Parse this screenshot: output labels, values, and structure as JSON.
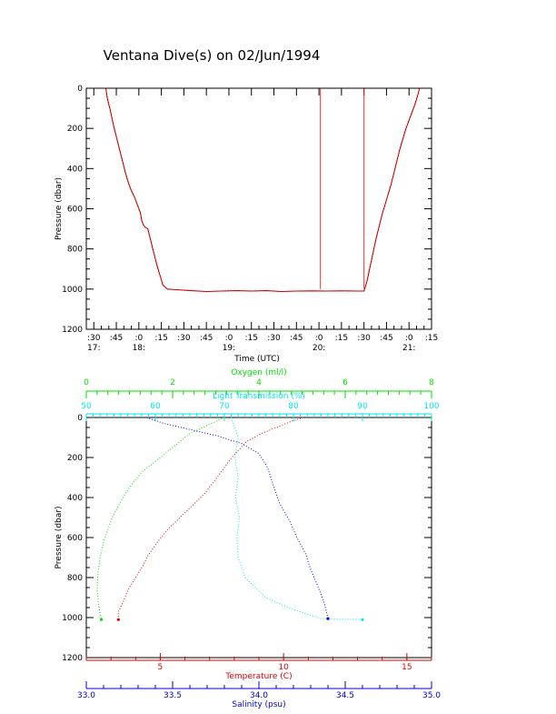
{
  "title": "Ventana Dive(s) on 02/Jun/1994",
  "chart_data": [
    {
      "type": "line",
      "title": "Ventana Dive(s) on 02/Jun/1994",
      "xlabel": "Time (UTC)",
      "ylabel": "Pressure (dbar)",
      "x_unit": "minutes after 17:00 UTC",
      "xlim": [
        25,
        255
      ],
      "ylim": [
        1200,
        0
      ],
      "y_ticks": [
        "0",
        "200",
        "400",
        "600",
        "800",
        "1000",
        "1200"
      ],
      "x_ticks": [
        {
          "minute": 30,
          "label": ":30",
          "hour": "17:"
        },
        {
          "minute": 45,
          "label": ":45",
          "hour": ""
        },
        {
          "minute": 60,
          "label": ":0",
          "hour": "18:"
        },
        {
          "minute": 75,
          "label": ":15",
          "hour": ""
        },
        {
          "minute": 90,
          "label": ":30",
          "hour": ""
        },
        {
          "minute": 105,
          "label": ":45",
          "hour": ""
        },
        {
          "minute": 120,
          "label": ":0",
          "hour": "19:"
        },
        {
          "minute": 135,
          "label": ":15",
          "hour": ""
        },
        {
          "minute": 150,
          "label": ":30",
          "hour": ""
        },
        {
          "minute": 165,
          "label": ":45",
          "hour": ""
        },
        {
          "minute": 180,
          "label": ":0",
          "hour": "20:"
        },
        {
          "minute": 195,
          "label": ":15",
          "hour": ""
        },
        {
          "minute": 210,
          "label": ":30",
          "hour": ""
        },
        {
          "minute": 225,
          "label": ":45",
          "hour": ""
        },
        {
          "minute": 240,
          "label": ":0",
          "hour": "21:"
        },
        {
          "minute": 255,
          "label": ":15",
          "hour": ""
        }
      ],
      "series": [
        {
          "color": "#ff0000",
          "x": [
            38,
            39,
            41,
            43,
            45,
            47,
            49,
            51,
            53,
            55,
            57,
            59,
            61,
            62,
            63,
            64,
            66,
            68,
            70,
            72,
            74,
            76,
            79,
            85,
            95,
            105,
            115,
            125,
            135,
            145,
            155,
            165,
            175,
            185,
            195,
            205,
            210,
            212,
            214,
            216,
            218,
            220,
            222,
            224,
            226,
            228,
            230,
            232,
            234,
            236,
            238,
            240,
            242,
            244,
            246,
            247
          ],
          "y": [
            0,
            50,
            110,
            180,
            240,
            300,
            360,
            420,
            470,
            510,
            540,
            580,
            620,
            660,
            680,
            690,
            700,
            760,
            820,
            880,
            930,
            980,
            1000,
            1003,
            1008,
            1012,
            1010,
            1008,
            1010,
            1008,
            1012,
            1010,
            1009,
            1010,
            1009,
            1010,
            1010,
            960,
            890,
            820,
            750,
            690,
            630,
            580,
            530,
            480,
            420,
            360,
            300,
            250,
            200,
            160,
            120,
            80,
            30,
            0
          ]
        },
        {
          "color": "#ff0000",
          "x": [
            181,
            181
          ],
          "y": [
            0,
            1000
          ]
        },
        {
          "color": "#ff0000",
          "x": [
            210,
            210
          ],
          "y": [
            0,
            1000
          ]
        }
      ]
    },
    {
      "type": "scatter",
      "ylabel": "Pressure (dbar)",
      "ylim": [
        1200,
        0
      ],
      "y_ticks": [
        "0",
        "200",
        "400",
        "600",
        "800",
        "1000",
        "1200"
      ],
      "axes": {
        "oxygen": {
          "label": "Oxygen (ml/l)",
          "color": "#00e000",
          "range": [
            0,
            8
          ],
          "ticks": [
            "0",
            "2",
            "4",
            "6",
            "8"
          ]
        },
        "light": {
          "label": "Light Transmission (%)",
          "color": "#00e8e8",
          "range": [
            50,
            100
          ],
          "ticks": [
            "50",
            "60",
            "70",
            "80",
            "90",
            "100"
          ]
        },
        "temperature": {
          "label": "Temperature (C)",
          "color": "#e00000",
          "range": [
            2,
            16
          ],
          "ticks": [
            "5",
            "10",
            "15"
          ]
        },
        "salinity": {
          "label": "Salinity (psu)",
          "color": "#0000e0",
          "range": [
            33.0,
            35.0
          ],
          "ticks": [
            "33.0",
            "33.5",
            "34.0",
            "34.5",
            "35.0"
          ]
        }
      },
      "series": [
        {
          "name": "Oxygen (ml/l)",
          "axis": "oxygen",
          "color": "#00e000",
          "x": [
            3.2,
            2.8,
            2.4,
            2.0,
            1.6,
            1.3,
            1.1,
            0.9,
            0.75,
            0.6,
            0.5,
            0.4,
            0.32,
            0.27,
            0.25,
            0.28,
            0.32,
            0.35
          ],
          "y": [
            0,
            40,
            80,
            150,
            220,
            270,
            320,
            380,
            440,
            500,
            560,
            620,
            700,
            780,
            860,
            930,
            980,
            1010
          ]
        },
        {
          "name": "Light Transmission (%)",
          "axis": "light",
          "color": "#00e8e8",
          "x": [
            71,
            72,
            71.5,
            72,
            71.6,
            72.2,
            71.8,
            72,
            73,
            76,
            80,
            84,
            87,
            90
          ],
          "y": [
            0,
            100,
            200,
            300,
            400,
            500,
            600,
            700,
            800,
            900,
            960,
            1005,
            1008,
            1010
          ]
        },
        {
          "name": "Temperature (C)",
          "axis": "temperature",
          "color": "#e00000",
          "x": [
            10.8,
            10.3,
            9.7,
            9.1,
            8.5,
            7.9,
            7.3,
            6.8,
            6.3,
            5.8,
            5.3,
            4.9,
            4.5,
            4.3,
            4.0,
            3.7,
            3.5,
            3.3,
            3.3
          ],
          "y": [
            0,
            20,
            50,
            80,
            120,
            200,
            300,
            380,
            440,
            500,
            560,
            620,
            690,
            740,
            800,
            860,
            920,
            970,
            1010
          ]
        },
        {
          "name": "Salinity (psu)",
          "axis": "salinity",
          "color": "#0000e0",
          "x": [
            33.35,
            33.45,
            33.6,
            33.75,
            33.9,
            34.0,
            34.05,
            34.08,
            34.12,
            34.18,
            34.22,
            34.27,
            34.3,
            34.34,
            34.38,
            34.4
          ],
          "y": [
            0,
            30,
            60,
            90,
            130,
            180,
            250,
            330,
            430,
            520,
            600,
            680,
            760,
            840,
            930,
            1005
          ]
        }
      ]
    }
  ]
}
